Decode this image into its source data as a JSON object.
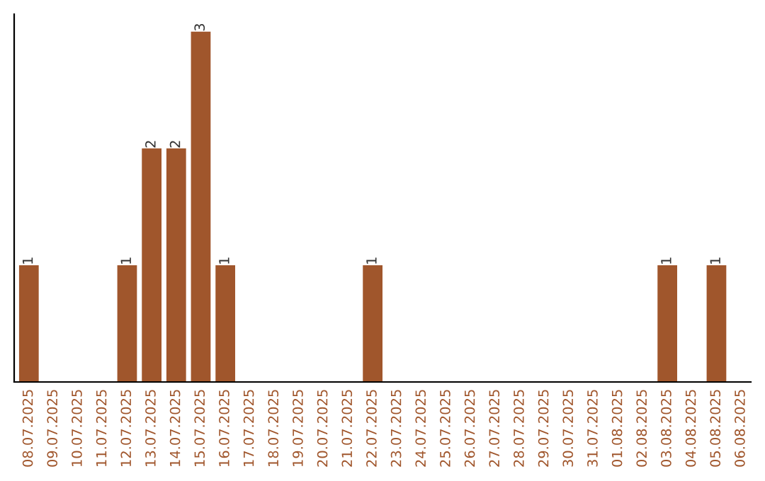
{
  "chart_data": {
    "type": "bar",
    "categories": [
      "08.07.2025",
      "09.07.2025",
      "10.07.2025",
      "11.07.2025",
      "12.07.2025",
      "13.07.2025",
      "14.07.2025",
      "15.07.2025",
      "16.07.2025",
      "17.07.2025",
      "18.07.2025",
      "19.07.2025",
      "20.07.2025",
      "21.07.2025",
      "22.07.2025",
      "23.07.2025",
      "24.07.2025",
      "25.07.2025",
      "26.07.2025",
      "27.07.2025",
      "28.07.2025",
      "29.07.2025",
      "30.07.2025",
      "31.07.2025",
      "01.08.2025",
      "02.08.2025",
      "03.08.2025",
      "04.08.2025",
      "05.08.2025",
      "06.08.2025"
    ],
    "values": [
      1,
      0,
      0,
      0,
      1,
      2,
      2,
      3,
      1,
      0,
      0,
      0,
      0,
      0,
      1,
      0,
      0,
      0,
      0,
      0,
      0,
      0,
      0,
      0,
      0,
      0,
      1,
      0,
      1,
      0
    ],
    "value_labels": [
      "1",
      null,
      null,
      null,
      "1",
      "2",
      "2",
      "3",
      "1",
      null,
      null,
      null,
      null,
      null,
      "1",
      null,
      null,
      null,
      null,
      null,
      null,
      null,
      null,
      null,
      null,
      null,
      "1",
      null,
      "1",
      null
    ],
    "color": "#a0562c",
    "tick_labels": "x",
    "grid": false,
    "legend": false
  }
}
